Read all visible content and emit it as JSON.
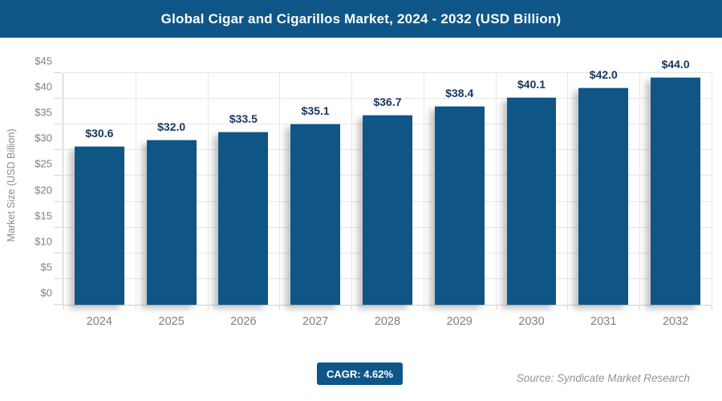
{
  "header": {
    "title": "Global Cigar and Cigarillos Market, 2024 - 2032 (USD Billion)"
  },
  "footer": {
    "cagr_label": "CAGR: 4.62%",
    "source": "Source: Syndicate Market Research"
  },
  "colors": {
    "brand_blue": "#0f5688",
    "bar_fill": "#0f5586",
    "value_label": "#17365d",
    "axis_text": "#808080",
    "gridline": "#e7e7e7",
    "source_text": "#8e959c"
  },
  "chart_data": {
    "type": "bar",
    "title": "Global Cigar and Cigarillos Market, 2024 - 2032 (USD Billion)",
    "xlabel": "",
    "ylabel": "Market Size (USD Billion)",
    "categories": [
      "2024",
      "2025",
      "2026",
      "2027",
      "2028",
      "2029",
      "2030",
      "2031",
      "2032"
    ],
    "values": [
      30.6,
      32.0,
      33.5,
      35.1,
      36.7,
      38.4,
      40.1,
      42.0,
      44.0
    ],
    "value_labels": [
      "$30.6",
      "$32.0",
      "$33.5",
      "$35.1",
      "$36.7",
      "$38.4",
      "$40.1",
      "$42.0",
      "$44.0"
    ],
    "ylim": [
      0,
      45
    ],
    "ytick_step": 5,
    "ytick_prefix": "$",
    "ytick_labels": [
      "$0",
      "$5",
      "$10",
      "$15",
      "$20",
      "$25",
      "$30",
      "$35",
      "$40",
      "$45"
    ],
    "grid": true,
    "legend": false,
    "annotations": [
      "CAGR: 4.62%"
    ]
  }
}
